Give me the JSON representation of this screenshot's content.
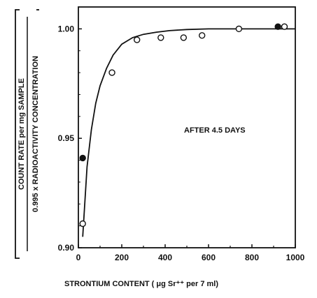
{
  "chart_data": {
    "type": "scatter",
    "title": "",
    "annotation": "AFTER 4.5 DAYS",
    "xlabel": "STRONTIUM CONTENT ( μg Sr⁺⁺ per 7 ml)",
    "ylabel_top": "COUNT RATE per mg SAMPLE",
    "ylabel_bottom": "0.995 x RADIOACTIVITY CONCENTRATION",
    "xlim": [
      0,
      1000
    ],
    "ylim": [
      0.9,
      1.01
    ],
    "xticks": [
      "0",
      "200",
      "400",
      "600",
      "800",
      "1000"
    ],
    "xtick_values": [
      0,
      200,
      400,
      600,
      800,
      1000
    ],
    "yticks": [
      "0.90",
      "0.95",
      "1.00"
    ],
    "ytick_values": [
      0.9,
      0.95,
      1.0
    ],
    "grid": false,
    "series": [
      {
        "marker": "open-circle",
        "x": [
          20,
          155,
          270,
          380,
          485,
          570,
          740,
          950
        ],
        "y": [
          0.911,
          0.98,
          0.995,
          0.996,
          0.996,
          0.997,
          1.0,
          1.001
        ]
      },
      {
        "marker": "filled-circle",
        "x": [
          20,
          920
        ],
        "y": [
          0.941,
          1.001
        ]
      },
      {
        "marker": "curve",
        "x": [
          20,
          40,
          60,
          80,
          100,
          130,
          160,
          200,
          250,
          300,
          360,
          420,
          500,
          600,
          700,
          800,
          900,
          1000
        ],
        "y": [
          0.905,
          0.937,
          0.954,
          0.966,
          0.974,
          0.982,
          0.988,
          0.993,
          0.996,
          0.9975,
          0.9985,
          0.9992,
          0.9997,
          1.0,
          1.0,
          1.0,
          1.0,
          1.0
        ]
      }
    ]
  }
}
